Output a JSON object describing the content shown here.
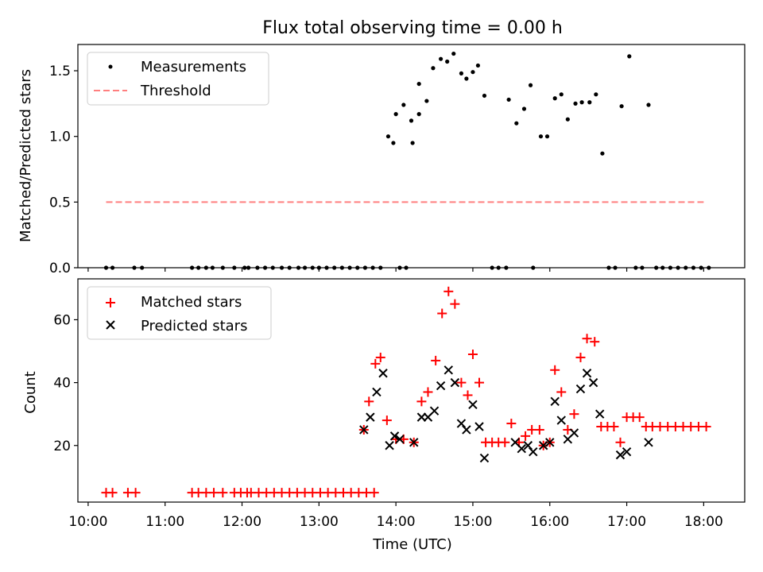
{
  "chart_data": [
    {
      "type": "scatter",
      "title": "Flux total observing time = 0.00 h",
      "ylabel": "Matched/Predicted stars",
      "xlabel": "",
      "xlim": [
        "09:52",
        "18:32"
      ],
      "ylim": [
        0,
        1.7
      ],
      "yticks": [
        0.0,
        0.5,
        1.0,
        1.5
      ],
      "ytick_labels": [
        "0.0",
        "0.5",
        "1.0",
        "1.5"
      ],
      "xticks_shown_labels": false,
      "legend": {
        "placement": "upper-left",
        "entries": [
          "Measurements",
          "Threshold"
        ]
      },
      "series": [
        {
          "name": "Measurements",
          "marker": "dot",
          "color": "#000000",
          "points": [
            [
              "10:14",
              0
            ],
            [
              "10:19",
              0
            ],
            [
              "10:36",
              0
            ],
            [
              "10:42",
              0
            ],
            [
              "11:21",
              0
            ],
            [
              "11:26",
              0
            ],
            [
              "11:32",
              0
            ],
            [
              "11:37",
              0
            ],
            [
              "11:45",
              0
            ],
            [
              "11:54",
              0
            ],
            [
              "12:02",
              0
            ],
            [
              "12:05",
              0
            ],
            [
              "12:12",
              0
            ],
            [
              "12:18",
              0
            ],
            [
              "12:24",
              0
            ],
            [
              "12:31",
              0
            ],
            [
              "12:37",
              0
            ],
            [
              "12:44",
              0
            ],
            [
              "12:49",
              0
            ],
            [
              "12:55",
              0
            ],
            [
              "13:00",
              0
            ],
            [
              "13:06",
              0
            ],
            [
              "13:12",
              0
            ],
            [
              "13:18",
              0
            ],
            [
              "13:24",
              0
            ],
            [
              "13:30",
              0
            ],
            [
              "13:36",
              0
            ],
            [
              "13:42",
              0
            ],
            [
              "13:48",
              0
            ],
            [
              "13:54",
              1.0
            ],
            [
              "13:60",
              1.17
            ],
            [
              "14:06",
              1.24
            ],
            [
              "14:12",
              1.12
            ],
            [
              "14:18",
              1.4
            ],
            [
              "13:58",
              0.95
            ],
            [
              "14:03",
              0
            ],
            [
              "14:08",
              0
            ],
            [
              "14:13",
              0.95
            ],
            [
              "14:18",
              1.17
            ],
            [
              "14:24",
              1.27
            ],
            [
              "14:29",
              1.52
            ],
            [
              "14:35",
              1.59
            ],
            [
              "14:40",
              1.57
            ],
            [
              "14:45",
              1.63
            ],
            [
              "14:51",
              1.48
            ],
            [
              "14:55",
              1.44
            ],
            [
              "15:00",
              1.49
            ],
            [
              "15:04",
              1.54
            ],
            [
              "15:09",
              1.31
            ],
            [
              "15:15",
              0
            ],
            [
              "15:20",
              0
            ],
            [
              "15:26",
              0
            ],
            [
              "15:28",
              1.28
            ],
            [
              "15:34",
              1.1
            ],
            [
              "15:40",
              1.21
            ],
            [
              "15:45",
              1.39
            ],
            [
              "15:47",
              0
            ],
            [
              "15:53",
              1.0
            ],
            [
              "15:58",
              1.0
            ],
            [
              "16:04",
              1.29
            ],
            [
              "16:09",
              1.32
            ],
            [
              "16:14",
              1.13
            ],
            [
              "16:20",
              1.25
            ],
            [
              "16:25",
              1.26
            ],
            [
              "16:31",
              1.26
            ],
            [
              "16:36",
              1.32
            ],
            [
              "16:41",
              0.87
            ],
            [
              "16:46",
              0
            ],
            [
              "16:51",
              0
            ],
            [
              "16:56",
              1.23
            ],
            [
              "17:02",
              1.61
            ],
            [
              "17:07",
              0
            ],
            [
              "17:12",
              0
            ],
            [
              "17:17",
              1.24
            ],
            [
              "17:23",
              0
            ],
            [
              "17:28",
              0
            ],
            [
              "17:34",
              0
            ],
            [
              "17:40",
              0
            ],
            [
              "17:46",
              0
            ],
            [
              "17:52",
              0
            ],
            [
              "17:58",
              0
            ],
            [
              "18:04",
              0
            ]
          ]
        },
        {
          "name": "Threshold",
          "marker": "dashed-line",
          "color": "#ff7f7f",
          "points": [
            [
              "10:14",
              0.5
            ],
            [
              "18:00",
              0.5
            ]
          ]
        }
      ]
    },
    {
      "type": "scatter",
      "title": "",
      "ylabel": "Count",
      "xlabel": "Time (UTC)",
      "xlim": [
        "09:52",
        "18:32"
      ],
      "ylim": [
        2,
        73
      ],
      "yticks": [
        20,
        40,
        60
      ],
      "ytick_labels": [
        "20",
        "40",
        "60"
      ],
      "xticks": [
        "10:00",
        "11:00",
        "12:00",
        "13:00",
        "14:00",
        "15:00",
        "16:00",
        "17:00",
        "18:00"
      ],
      "xtick_labels": [
        "10:00",
        "11:00",
        "12:00",
        "13:00",
        "14:00",
        "15:00",
        "16:00",
        "17:00",
        "18:00"
      ],
      "legend": {
        "placement": "upper-left",
        "entries": [
          "Matched stars",
          "Predicted stars"
        ]
      },
      "series": [
        {
          "name": "Matched stars",
          "marker": "plus",
          "color": "#ff0000",
          "points": [
            [
              "10:14",
              5
            ],
            [
              "10:19",
              5
            ],
            [
              "10:31",
              5
            ],
            [
              "10:37",
              5
            ],
            [
              "11:21",
              5
            ],
            [
              "11:26",
              5
            ],
            [
              "11:32",
              5
            ],
            [
              "11:38",
              5
            ],
            [
              "11:45",
              5
            ],
            [
              "11:54",
              5
            ],
            [
              "11:59",
              5
            ],
            [
              "12:04",
              5
            ],
            [
              "12:07",
              5
            ],
            [
              "12:13",
              5
            ],
            [
              "12:19",
              5
            ],
            [
              "12:25",
              5
            ],
            [
              "12:31",
              5
            ],
            [
              "12:37",
              5
            ],
            [
              "12:43",
              5
            ],
            [
              "12:49",
              5
            ],
            [
              "12:55",
              5
            ],
            [
              "13:01",
              5
            ],
            [
              "13:07",
              5
            ],
            [
              "13:13",
              5
            ],
            [
              "13:19",
              5
            ],
            [
              "13:25",
              5
            ],
            [
              "13:31",
              5
            ],
            [
              "13:37",
              5
            ],
            [
              "13:43",
              5
            ],
            [
              "13:35",
              25
            ],
            [
              "13:39",
              34
            ],
            [
              "13:44",
              46
            ],
            [
              "13:48",
              48
            ],
            [
              "13:53",
              28
            ],
            [
              "14:00",
              22
            ],
            [
              "14:06",
              22
            ],
            [
              "14:14",
              21
            ],
            [
              "14:20",
              34
            ],
            [
              "14:25",
              37
            ],
            [
              "14:31",
              47
            ],
            [
              "14:36",
              62
            ],
            [
              "14:41",
              69
            ],
            [
              "14:46",
              65
            ],
            [
              "14:51",
              40
            ],
            [
              "14:56",
              36
            ],
            [
              "15:00",
              49
            ],
            [
              "15:05",
              40
            ],
            [
              "15:10",
              21
            ],
            [
              "15:15",
              21
            ],
            [
              "15:20",
              21
            ],
            [
              "15:25",
              21
            ],
            [
              "15:30",
              27
            ],
            [
              "15:36",
              21
            ],
            [
              "15:41",
              23
            ],
            [
              "15:46",
              25
            ],
            [
              "15:52",
              25
            ],
            [
              "15:55",
              20
            ],
            [
              "16:00",
              21
            ],
            [
              "16:04",
              44
            ],
            [
              "16:09",
              37
            ],
            [
              "16:14",
              25
            ],
            [
              "16:19",
              30
            ],
            [
              "16:24",
              48
            ],
            [
              "16:29",
              54
            ],
            [
              "16:35",
              53
            ],
            [
              "16:40",
              26
            ],
            [
              "16:45",
              26
            ],
            [
              "16:50",
              26
            ],
            [
              "16:55",
              21
            ],
            [
              "17:00",
              29
            ],
            [
              "17:05",
              29
            ],
            [
              "17:10",
              29
            ],
            [
              "17:15",
              26
            ],
            [
              "17:20",
              26
            ],
            [
              "17:26",
              26
            ],
            [
              "17:32",
              26
            ],
            [
              "17:38",
              26
            ],
            [
              "17:44",
              26
            ],
            [
              "17:50",
              26
            ],
            [
              "17:56",
              26
            ],
            [
              "18:02",
              26
            ]
          ]
        },
        {
          "name": "Predicted stars",
          "marker": "x",
          "color": "#000000",
          "points": [
            [
              "13:35",
              25
            ],
            [
              "13:40",
              29
            ],
            [
              "13:45",
              37
            ],
            [
              "13:50",
              43
            ],
            [
              "13:55",
              20
            ],
            [
              "13:59",
              23
            ],
            [
              "14:03",
              22
            ],
            [
              "14:14",
              21
            ],
            [
              "14:20",
              29
            ],
            [
              "14:25",
              29
            ],
            [
              "14:30",
              31
            ],
            [
              "14:35",
              39
            ],
            [
              "14:41",
              44
            ],
            [
              "14:46",
              40
            ],
            [
              "14:51",
              27
            ],
            [
              "14:55",
              25
            ],
            [
              "15:00",
              33
            ],
            [
              "15:05",
              26
            ],
            [
              "15:09",
              16
            ],
            [
              "15:33",
              21
            ],
            [
              "15:38",
              19
            ],
            [
              "15:43",
              20
            ],
            [
              "15:47",
              18
            ],
            [
              "15:55",
              20
            ],
            [
              "15:60",
              21
            ],
            [
              "16:04",
              34
            ],
            [
              "16:09",
              28
            ],
            [
              "16:14",
              22
            ],
            [
              "16:19",
              24
            ],
            [
              "16:24",
              38
            ],
            [
              "16:29",
              43
            ],
            [
              "16:34",
              40
            ],
            [
              "16:39",
              30
            ],
            [
              "16:55",
              17
            ],
            [
              "17:00",
              18
            ],
            [
              "17:17",
              21
            ]
          ]
        }
      ]
    }
  ]
}
